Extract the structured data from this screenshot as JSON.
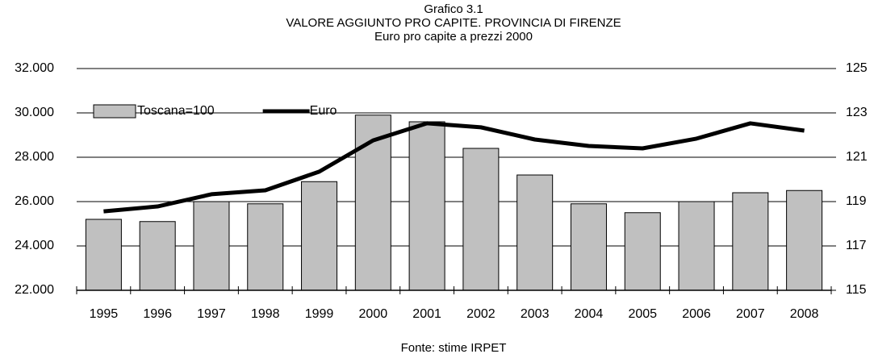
{
  "chart_data": {
    "type": "bar_line",
    "title": "Grafico 3.1",
    "subtitle": "VALORE AGGIUNTO PRO CAPITE. PROVINCIA DI FIRENZE",
    "subtitle2": "Euro pro capite a prezzi 2000",
    "source": "Fonte: stime IRPET",
    "categories": [
      "1995",
      "1996",
      "1997",
      "1998",
      "1999",
      "2000",
      "2001",
      "2002",
      "2003",
      "2004",
      "2005",
      "2006",
      "2007",
      "2008"
    ],
    "series": [
      {
        "name": "Toscana=100",
        "type": "bar",
        "axis": "y2",
        "color": "#c0c0c0",
        "values": [
          118.2,
          118.1,
          119.0,
          118.9,
          119.9,
          122.9,
          122.6,
          121.4,
          120.2,
          118.9,
          118.5,
          119.0,
          119.4,
          119.5
        ]
      },
      {
        "name": "Euro",
        "type": "line",
        "axis": "y",
        "color": "#000000",
        "values": [
          25560,
          25780,
          26330,
          26510,
          27350,
          28760,
          29530,
          29350,
          28800,
          28510,
          28400,
          28840,
          29530,
          29200
        ]
      }
    ],
    "ylim": [
      22000,
      32000
    ],
    "yticks": [
      {
        "value": 22000,
        "label": "22.000"
      },
      {
        "value": 24000,
        "label": "24.000"
      },
      {
        "value": 26000,
        "label": "26.000"
      },
      {
        "value": 28000,
        "label": "28.000"
      },
      {
        "value": 30000,
        "label": "30.000"
      },
      {
        "value": 32000,
        "label": "32.000"
      }
    ],
    "y2lim": [
      115,
      125
    ],
    "y2ticks": [
      115,
      117,
      119,
      121,
      123,
      125
    ],
    "grid": true,
    "legend": "top-left"
  }
}
